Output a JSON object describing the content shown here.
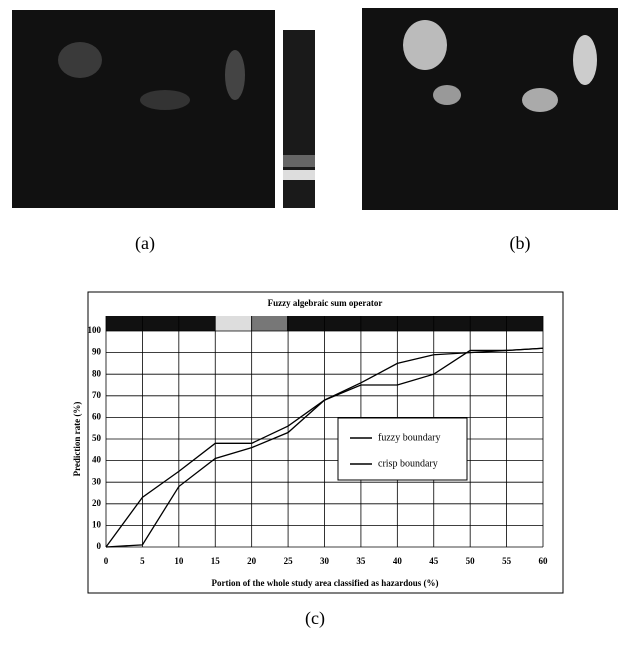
{
  "figure": {
    "panel_labels": [
      "(a)",
      "(b)",
      "(c)"
    ]
  },
  "chart_data": {
    "type": "line",
    "title": "Fuzzy algebraic sum operator",
    "x_label": "Portion of the whole study area classified as hazardous (%)",
    "y_label": "Prediction rate (%)",
    "x": [
      0,
      5,
      10,
      15,
      20,
      25,
      30,
      35,
      40,
      45,
      50,
      55,
      60
    ],
    "series": [
      {
        "name": "fuzzy boundary",
        "color": "#000000",
        "values": [
          0,
          23,
          35,
          48,
          48,
          56,
          68,
          76,
          85,
          89,
          90,
          91,
          92
        ]
      },
      {
        "name": "crisp boundary",
        "color": "#000000",
        "values": [
          0,
          1,
          28,
          41,
          46,
          53,
          68,
          75,
          75,
          80,
          91,
          91,
          92
        ]
      }
    ],
    "xlim": [
      0,
      60
    ],
    "xticks": [
      0,
      5,
      10,
      15,
      20,
      25,
      30,
      35,
      40,
      45,
      50,
      55,
      60
    ],
    "ylim": [
      0,
      100
    ],
    "yticks": [
      0,
      10,
      20,
      30,
      40,
      50,
      60,
      70,
      80,
      90,
      100
    ],
    "grid": true
  }
}
